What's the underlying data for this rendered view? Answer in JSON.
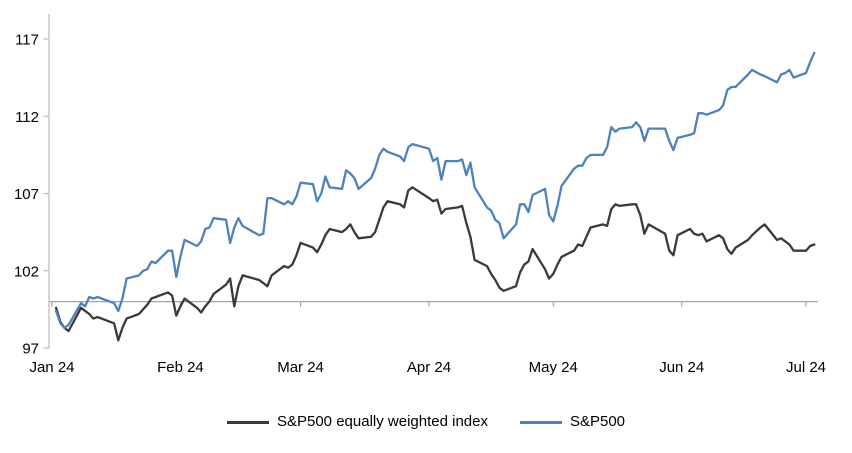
{
  "chart_data": {
    "type": "line",
    "title": "",
    "x_tick_labels": [
      "Jan 24",
      "Feb 24",
      "Mar 24",
      "Apr 24",
      "May 24",
      "Jun 24",
      "Jul 24"
    ],
    "y_ticks": [
      117,
      112,
      107,
      102,
      97
    ],
    "ylim": [
      97,
      118.5
    ],
    "baseline_value": 100,
    "grid": "off",
    "legend_position": "bottom",
    "dates": [
      "1-2",
      "1-3",
      "1-4",
      "1-5",
      "1-8",
      "1-9",
      "1-10",
      "1-11",
      "1-12",
      "1-16",
      "1-17",
      "1-18",
      "1-19",
      "1-22",
      "1-23",
      "1-24",
      "1-25",
      "1-26",
      "1-29",
      "1-30",
      "1-31",
      "2-1",
      "2-2",
      "2-5",
      "2-6",
      "2-7",
      "2-8",
      "2-9",
      "2-12",
      "2-13",
      "2-14",
      "2-15",
      "2-16",
      "2-20",
      "2-21",
      "2-22",
      "2-23",
      "2-26",
      "2-27",
      "2-28",
      "2-29",
      "3-1",
      "3-4",
      "3-5",
      "3-6",
      "3-7",
      "3-8",
      "3-11",
      "3-12",
      "3-13",
      "3-14",
      "3-15",
      "3-18",
      "3-19",
      "3-20",
      "3-21",
      "3-22",
      "3-25",
      "3-26",
      "3-27",
      "3-28",
      "4-1",
      "4-2",
      "4-3",
      "4-4",
      "4-5",
      "4-8",
      "4-9",
      "4-10",
      "4-11",
      "4-12",
      "4-15",
      "4-16",
      "4-17",
      "4-18",
      "4-19",
      "4-22",
      "4-23",
      "4-24",
      "4-25",
      "4-26",
      "4-29",
      "4-30",
      "5-1",
      "5-2",
      "5-3",
      "5-6",
      "5-7",
      "5-8",
      "5-9",
      "5-10",
      "5-13",
      "5-14",
      "5-15",
      "5-16",
      "5-17",
      "5-20",
      "5-21",
      "5-22",
      "5-23",
      "5-24",
      "5-28",
      "5-29",
      "5-30",
      "5-31",
      "6-3",
      "6-4",
      "6-5",
      "6-6",
      "6-7",
      "6-10",
      "6-11",
      "6-12",
      "6-13",
      "6-14",
      "6-17",
      "6-18",
      "6-20",
      "6-21",
      "6-24",
      "6-25",
      "6-26",
      "6-27",
      "6-28",
      "7-1",
      "7-2",
      "7-3"
    ],
    "series": [
      {
        "name": "S&P500 equally weighted index",
        "color": "#3a3a3a",
        "values": [
          99.6,
          98.7,
          98.3,
          98.1,
          99.6,
          99.4,
          99.2,
          98.9,
          99.0,
          98.6,
          97.5,
          98.3,
          98.9,
          99.2,
          99.5,
          99.8,
          100.2,
          100.3,
          100.6,
          100.4,
          99.1,
          99.7,
          100.2,
          99.6,
          99.3,
          99.7,
          100.0,
          100.5,
          101.1,
          101.5,
          99.7,
          101.0,
          101.7,
          101.4,
          101.2,
          101.0,
          101.7,
          102.3,
          102.2,
          102.4,
          103.0,
          103.8,
          103.5,
          103.2,
          103.7,
          104.3,
          104.7,
          104.5,
          104.7,
          105.0,
          104.5,
          104.1,
          104.2,
          104.5,
          105.3,
          106.1,
          106.5,
          106.3,
          106.1,
          107.2,
          107.4,
          106.7,
          106.5,
          106.6,
          105.7,
          106.0,
          106.1,
          106.2,
          105.1,
          104.2,
          102.7,
          102.3,
          101.8,
          101.4,
          100.9,
          100.7,
          101.0,
          101.9,
          102.4,
          102.6,
          103.4,
          102.1,
          101.5,
          101.8,
          102.4,
          102.9,
          103.3,
          103.7,
          103.6,
          104.2,
          104.8,
          105.0,
          104.9,
          106.0,
          106.3,
          106.2,
          106.3,
          106.3,
          105.6,
          104.4,
          105.0,
          104.4,
          103.3,
          103.0,
          104.3,
          104.7,
          104.4,
          104.3,
          104.4,
          103.9,
          104.3,
          104.1,
          103.4,
          103.1,
          103.5,
          104.0,
          104.3,
          104.8,
          105.0,
          104.0,
          104.1,
          103.9,
          103.7,
          103.3,
          103.3,
          103.6,
          103.7
        ]
      },
      {
        "name": "S&P500",
        "color": "#4f81bd",
        "values": [
          99.4,
          98.6,
          98.3,
          98.5,
          99.9,
          99.7,
          100.3,
          100.2,
          100.3,
          99.9,
          99.4,
          100.2,
          101.5,
          101.7,
          102.0,
          102.1,
          102.6,
          102.5,
          103.3,
          103.3,
          101.6,
          102.9,
          104.0,
          103.6,
          103.9,
          104.7,
          104.8,
          105.4,
          105.3,
          103.8,
          104.8,
          105.4,
          104.9,
          104.3,
          104.4,
          106.7,
          106.7,
          106.3,
          106.5,
          106.3,
          106.8,
          107.7,
          107.6,
          106.5,
          107.0,
          108.1,
          107.4,
          107.3,
          108.5,
          108.3,
          108.0,
          107.3,
          108.0,
          108.6,
          109.5,
          109.9,
          109.7,
          109.4,
          109.1,
          110.0,
          110.2,
          109.9,
          109.1,
          109.3,
          107.9,
          109.1,
          109.1,
          109.2,
          108.2,
          109.0,
          107.4,
          106.1,
          105.9,
          105.3,
          105.1,
          104.1,
          105.0,
          106.3,
          106.3,
          105.8,
          106.9,
          107.3,
          105.6,
          105.2,
          106.2,
          107.5,
          108.6,
          108.8,
          108.8,
          109.3,
          109.5,
          109.5,
          110.0,
          111.3,
          111.0,
          111.2,
          111.3,
          111.6,
          111.3,
          110.4,
          111.2,
          111.2,
          110.4,
          109.8,
          110.6,
          110.8,
          110.9,
          112.2,
          112.2,
          112.1,
          112.4,
          112.7,
          113.7,
          113.9,
          113.9,
          114.7,
          115.0,
          114.7,
          114.6,
          114.2,
          114.7,
          114.8,
          115.0,
          114.5,
          114.8,
          115.5,
          116.1
        ]
      }
    ]
  },
  "colors": {
    "axis_line": "#bfbfbf",
    "baseline": "#a6a6a6",
    "tick_text": "#000000",
    "background": "#ffffff"
  }
}
